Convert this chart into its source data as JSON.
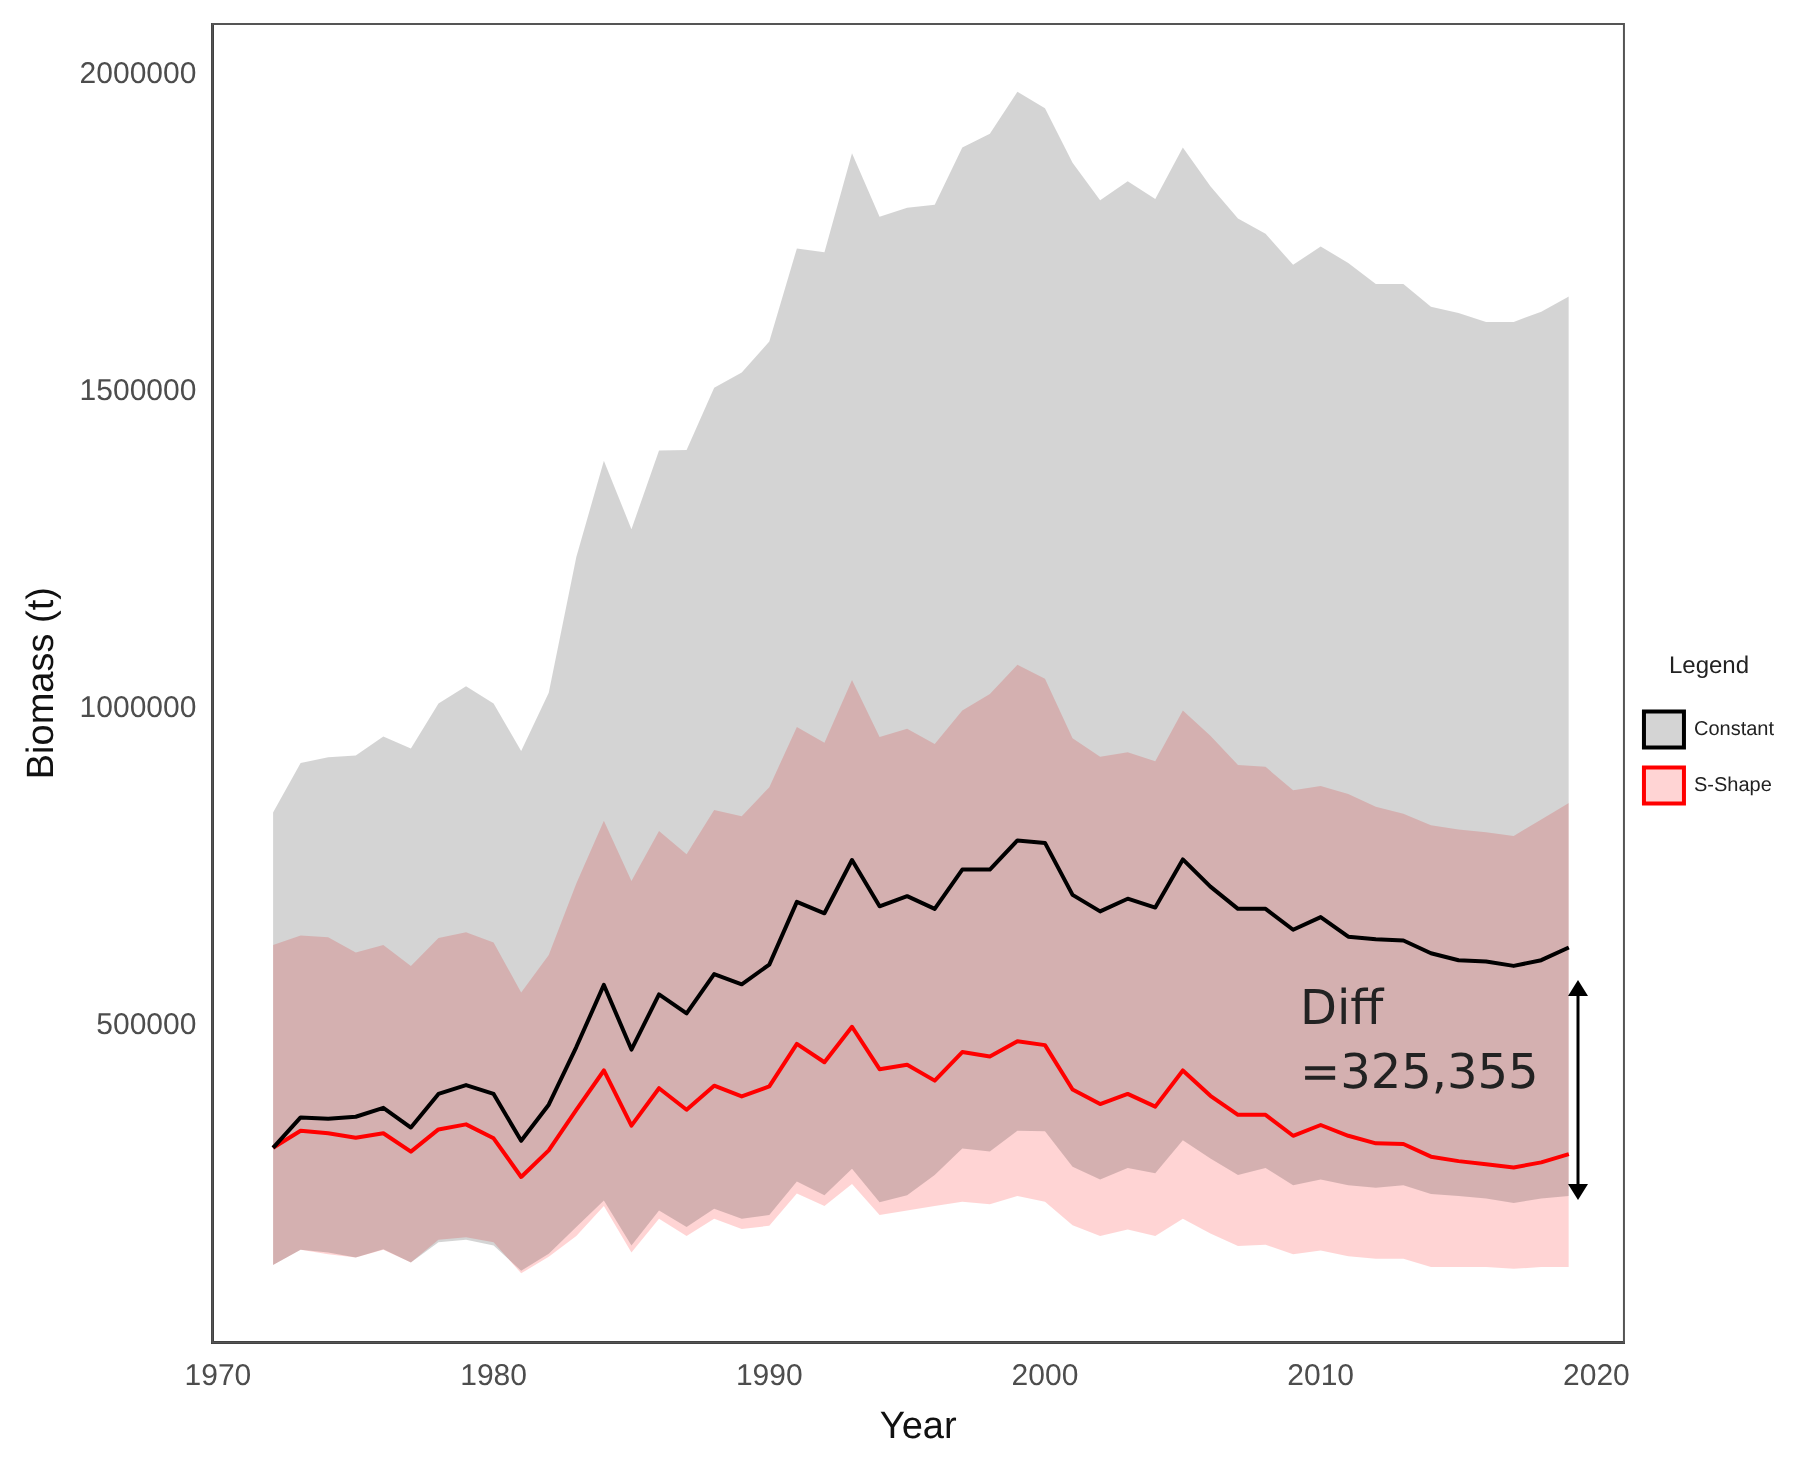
{
  "chart_data": {
    "type": "line",
    "xlabel": "Year",
    "ylabel": "Biomass (t)",
    "legend_title": "Legend",
    "legend": "right",
    "grid": false,
    "marker": "none",
    "line_style": "solid",
    "xlim": [
      1969.8,
      2021
    ],
    "xticks": [
      1970,
      1980,
      1990,
      2000,
      2010,
      2020
    ],
    "ylim": [
      0,
      2080000
    ],
    "yticks": [
      500000,
      1000000,
      1500000,
      2000000
    ],
    "x": [
      1972,
      1973,
      1974,
      1975,
      1976,
      1977,
      1978,
      1979,
      1980,
      1981,
      1982,
      1983,
      1984,
      1985,
      1986,
      1987,
      1988,
      1989,
      1990,
      1991,
      1992,
      1993,
      1994,
      1995,
      1996,
      1997,
      1998,
      1999,
      2000,
      2001,
      2002,
      2003,
      2004,
      2005,
      2006,
      2007,
      2008,
      2009,
      2010,
      2011,
      2012,
      2013,
      2014,
      2015,
      2016,
      2017,
      2018,
      2019
    ],
    "series": [
      {
        "name": "Constant",
        "color": "#000000",
        "values": [
          307000,
          355000,
          353000,
          356000,
          370000,
          339000,
          392000,
          406000,
          392000,
          318000,
          375000,
          466000,
          564000,
          462000,
          549000,
          519000,
          581000,
          565000,
          596000,
          695000,
          677000,
          761000,
          688000,
          704000,
          684000,
          746000,
          746000,
          792000,
          788000,
          706000,
          680000,
          700000,
          686000,
          762000,
          719000,
          684000,
          684000,
          651000,
          671000,
          640000,
          636000,
          634000,
          614000,
          603000,
          601000,
          594000,
          603000,
          623000
        ],
        "lower": [
          122000,
          146000,
          142000,
          134000,
          147000,
          126000,
          158000,
          162000,
          153000,
          113000,
          140000,
          182000,
          224000,
          153000,
          208000,
          182000,
          211000,
          195000,
          201000,
          254000,
          232000,
          274000,
          221000,
          232000,
          264000,
          306000,
          301000,
          334000,
          333000,
          277000,
          257000,
          275000,
          267000,
          319000,
          290000,
          264000,
          275000,
          248000,
          257000,
          248000,
          244000,
          248000,
          234000,
          231000,
          227000,
          220000,
          227000,
          231000
        ],
        "upper": [
          836000,
          914000,
          923000,
          926000,
          956000,
          937000,
          1008000,
          1035000,
          1008000,
          933000,
          1025000,
          1239000,
          1391000,
          1283000,
          1407000,
          1408000,
          1506000,
          1530000,
          1579000,
          1726000,
          1720000,
          1876000,
          1776000,
          1790000,
          1795000,
          1885000,
          1907000,
          1973000,
          1947000,
          1861000,
          1802000,
          1832000,
          1804000,
          1885000,
          1824000,
          1773000,
          1749000,
          1700000,
          1729000,
          1703000,
          1670000,
          1670000,
          1634000,
          1624000,
          1610000,
          1610000,
          1626000,
          1650000
        ]
      },
      {
        "name": "S-Shape",
        "color": "#ff0000",
        "values": [
          307000,
          334000,
          330000,
          323000,
          330000,
          301000,
          336000,
          344000,
          322000,
          261000,
          303000,
          367000,
          429000,
          342000,
          401000,
          367000,
          405000,
          388000,
          404000,
          471000,
          442000,
          498000,
          431000,
          438000,
          413000,
          458000,
          451000,
          475000,
          469000,
          399000,
          376000,
          392000,
          372000,
          429000,
          389000,
          359000,
          359000,
          326000,
          343000,
          326000,
          314000,
          313000,
          293000,
          286000,
          281000,
          276000,
          284000,
          297000
        ],
        "lower": [
          122000,
          146000,
          139000,
          134000,
          146000,
          126000,
          162000,
          166000,
          158000,
          109000,
          135000,
          168000,
          215000,
          142000,
          195000,
          168000,
          195000,
          179000,
          184000,
          235000,
          215000,
          250000,
          201000,
          208000,
          215000,
          222000,
          218000,
          231000,
          222000,
          185000,
          168000,
          178000,
          168000,
          195000,
          172000,
          152000,
          154000,
          139000,
          145000,
          136000,
          132000,
          132000,
          119000,
          119000,
          119000,
          116000,
          119000,
          119000
        ],
        "upper": [
          627000,
          642000,
          639000,
          615000,
          627000,
          594000,
          638000,
          647000,
          631000,
          552000,
          611000,
          724000,
          823000,
          728000,
          807000,
          770000,
          840000,
          830000,
          876000,
          971000,
          946000,
          1045000,
          955000,
          968000,
          944000,
          997000,
          1023000,
          1069000,
          1047000,
          953000,
          924000,
          931000,
          917000,
          997000,
          957000,
          911000,
          908000,
          871000,
          878000,
          865000,
          845000,
          834000,
          816000,
          809000,
          805000,
          799000,
          825000,
          851000
        ]
      }
    ],
    "annotations": [
      "Diff\n=325,355"
    ]
  }
}
